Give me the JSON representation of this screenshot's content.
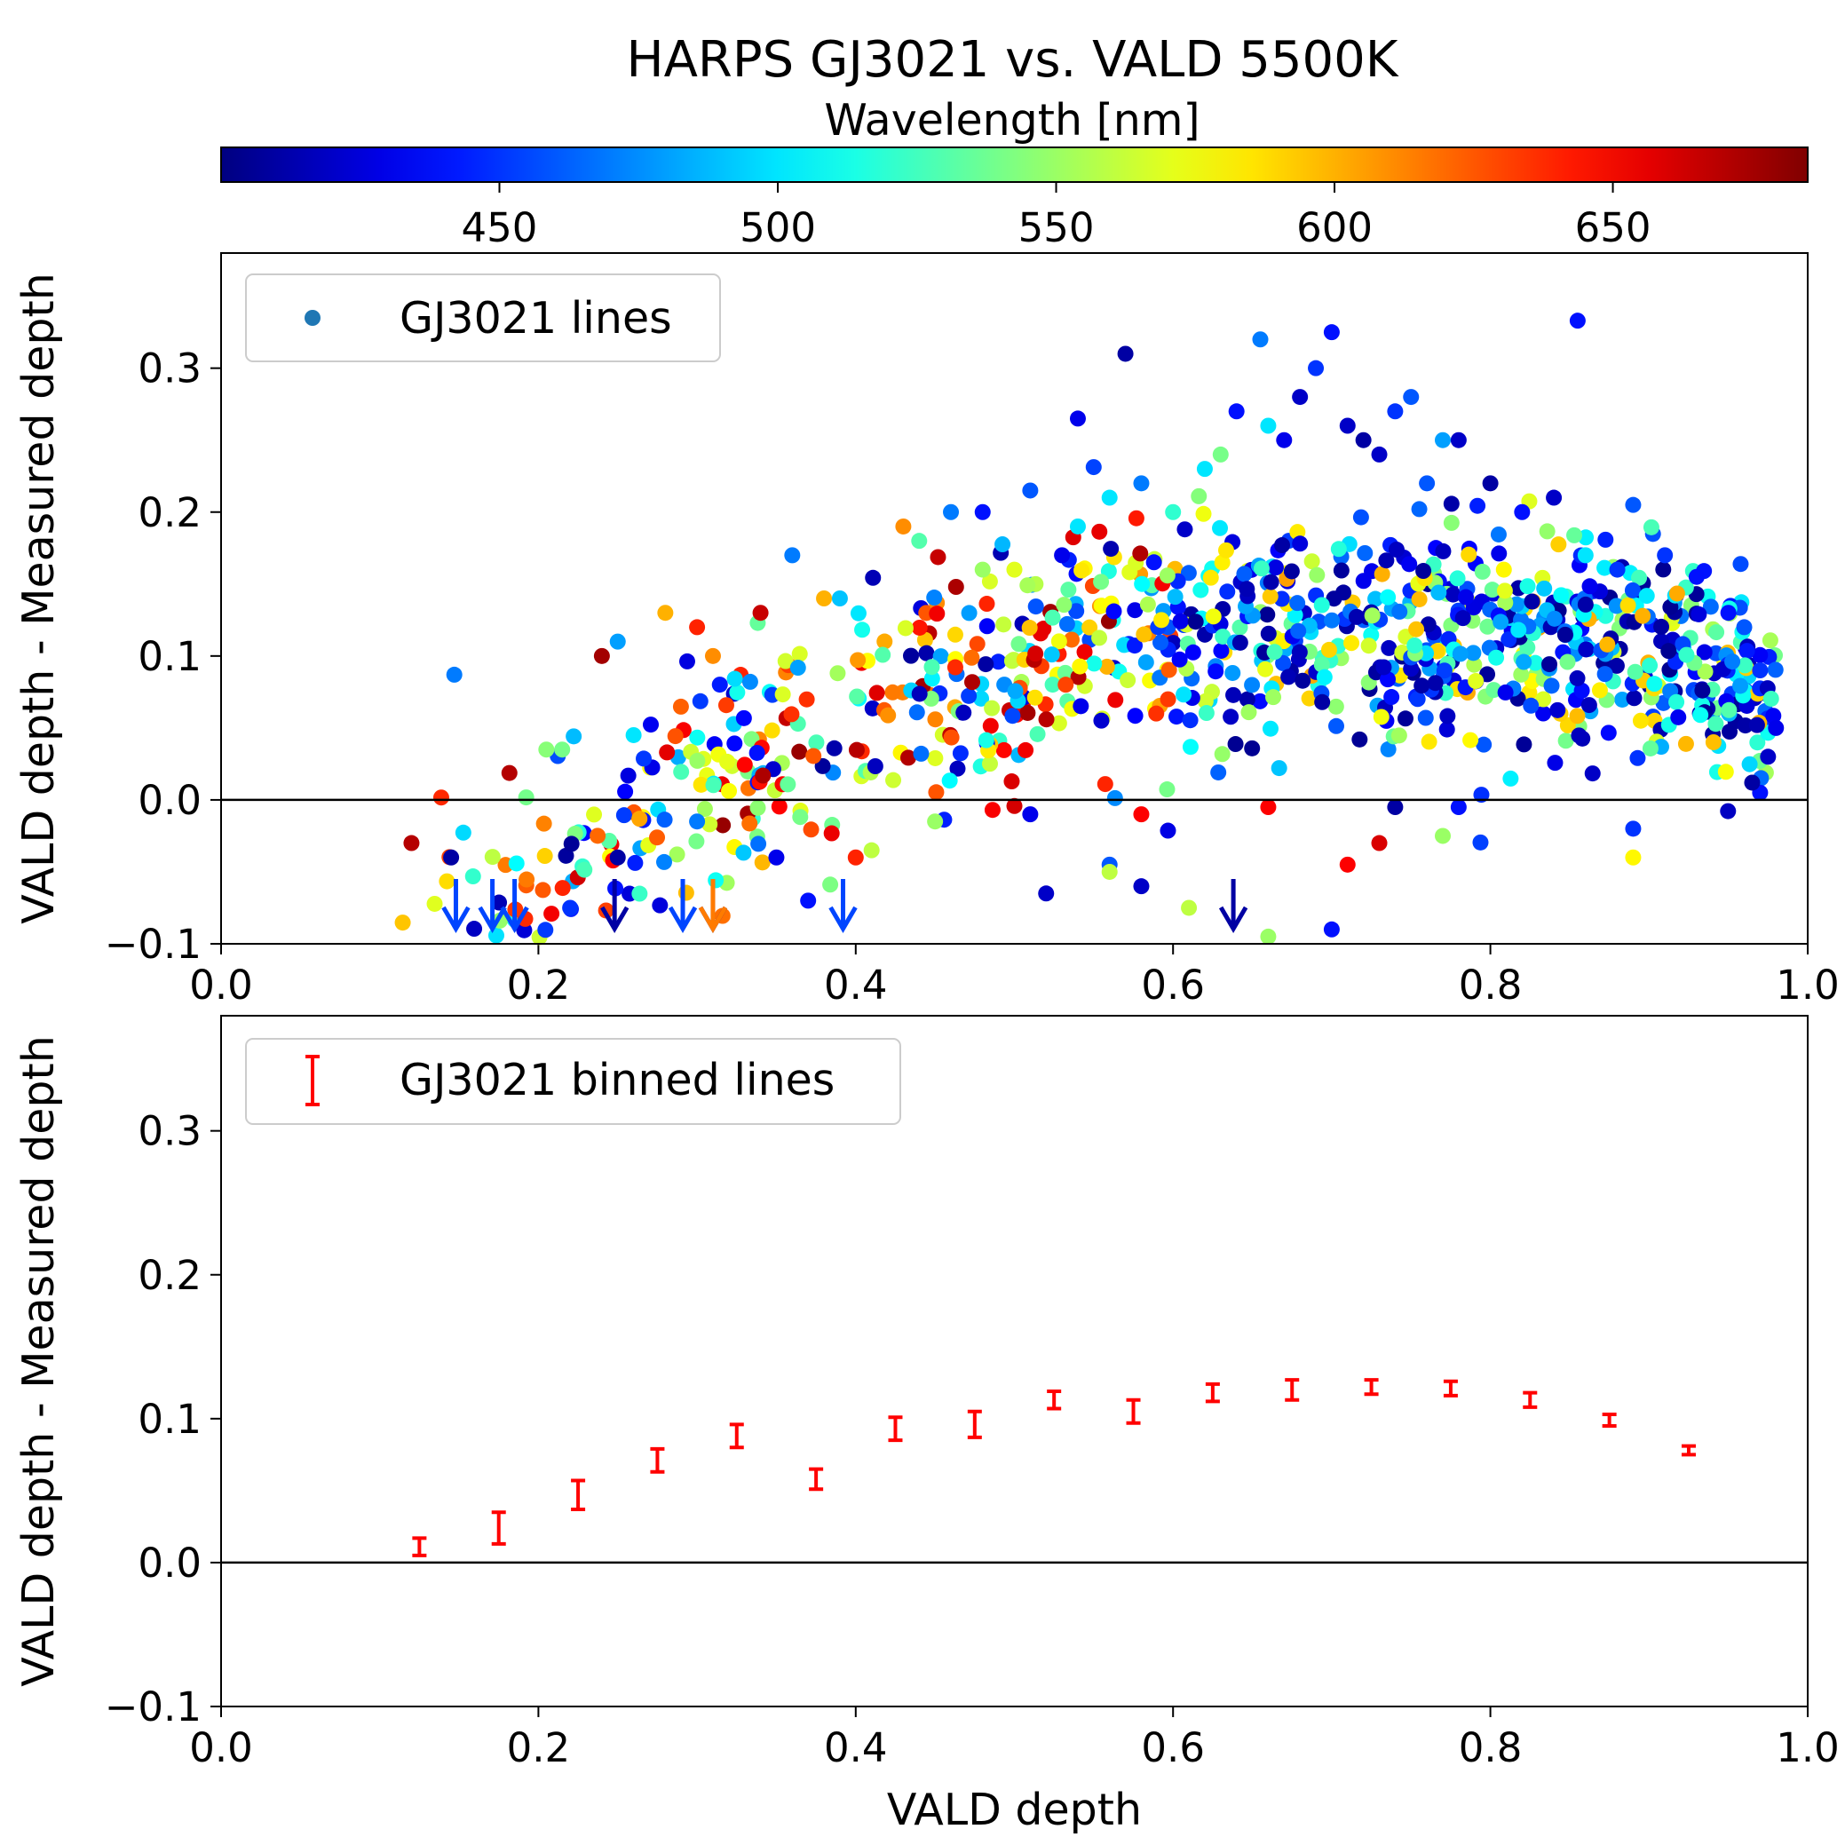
{
  "chart_data": [
    {
      "type": "scatter",
      "title": "HARPS GJ3021 vs. VALD 5500K",
      "ylabel": "VALD depth - Measured depth",
      "xlim": [
        0.0,
        1.0
      ],
      "ylim": [
        -0.1,
        0.38
      ],
      "x_ticks": [
        "0.0",
        "0.2",
        "0.4",
        "0.6",
        "0.8",
        "1.0"
      ],
      "y_ticks": [
        "0.3",
        "0.2",
        "0.1",
        "0.0",
        "−0.1"
      ],
      "x_tick_values": [
        0.0,
        0.2,
        0.4,
        0.6,
        0.8,
        1.0
      ],
      "y_tick_values": [
        0.3,
        0.2,
        0.1,
        0.0,
        -0.1
      ],
      "zero_line": true,
      "grid": false,
      "legend": {
        "position": "top-left",
        "label": "GJ3021 lines",
        "marker_color": "#1f77b4"
      },
      "colorbar": {
        "label": "Wavelength [nm]",
        "colormap": "jet",
        "position": "top",
        "range": [
          400,
          685
        ],
        "ticks": [
          "450",
          "500",
          "550",
          "600",
          "650"
        ],
        "tick_values": [
          450,
          500,
          550,
          600,
          650
        ]
      },
      "marker_seed": 3021,
      "marker_count": 1000,
      "points": [
        [
          0.147,
          0.087,
          470
        ],
        [
          0.205,
          0.035,
          545
        ],
        [
          0.215,
          0.035,
          540
        ],
        [
          0.24,
          0.1,
          675
        ],
        [
          0.25,
          0.11,
          480
        ],
        [
          0.26,
          0.045,
          500
        ],
        [
          0.28,
          0.13,
          600
        ],
        [
          0.3,
          0.12,
          640
        ],
        [
          0.31,
          0.1,
          610
        ],
        [
          0.34,
          0.13,
          665
        ],
        [
          0.36,
          0.17,
          470
        ],
        [
          0.38,
          0.14,
          600
        ],
        [
          0.39,
          0.14,
          490
        ],
        [
          0.43,
          0.19,
          610
        ],
        [
          0.44,
          0.18,
          530
        ],
        [
          0.46,
          0.2,
          470
        ],
        [
          0.48,
          0.2,
          440
        ],
        [
          0.48,
          0.16,
          550
        ],
        [
          0.5,
          0.16,
          570
        ],
        [
          0.51,
          0.215,
          460
        ],
        [
          0.53,
          0.17,
          430
        ],
        [
          0.54,
          0.265,
          430
        ],
        [
          0.54,
          0.19,
          500
        ],
        [
          0.56,
          0.21,
          500
        ],
        [
          0.57,
          0.31,
          410
        ],
        [
          0.58,
          0.22,
          470
        ],
        [
          0.6,
          0.2,
          520
        ],
        [
          0.62,
          0.23,
          500
        ],
        [
          0.63,
          0.24,
          540
        ],
        [
          0.64,
          0.27,
          440
        ],
        [
          0.655,
          0.32,
          470
        ],
        [
          0.66,
          0.26,
          500
        ],
        [
          0.67,
          0.25,
          430
        ],
        [
          0.68,
          0.28,
          420
        ],
        [
          0.69,
          0.3,
          450
        ],
        [
          0.7,
          0.325,
          440
        ],
        [
          0.71,
          0.26,
          420
        ],
        [
          0.72,
          0.25,
          410
        ],
        [
          0.73,
          0.24,
          420
        ],
        [
          0.74,
          0.27,
          450
        ],
        [
          0.75,
          0.28,
          460
        ],
        [
          0.76,
          0.22,
          460
        ],
        [
          0.77,
          0.25,
          480
        ],
        [
          0.78,
          0.25,
          420
        ],
        [
          0.8,
          0.22,
          410
        ],
        [
          0.82,
          0.2,
          440
        ],
        [
          0.84,
          0.21,
          420
        ],
        [
          0.855,
          0.333,
          440
        ],
        [
          0.86,
          0.17,
          500
        ],
        [
          0.88,
          0.16,
          450
        ],
        [
          0.89,
          0.205,
          460
        ],
        [
          0.91,
          0.17,
          450
        ],
        [
          0.93,
          0.155,
          440
        ],
        [
          0.95,
          0.13,
          440
        ],
        [
          0.96,
          0.12,
          460
        ],
        [
          0.97,
          0.09,
          450
        ],
        [
          0.98,
          0.05,
          430
        ],
        [
          0.975,
          0.03,
          420
        ],
        [
          0.97,
          0.005,
          440
        ],
        [
          0.965,
          0.012,
          410
        ],
        [
          0.12,
          -0.03,
          670
        ],
        [
          0.145,
          -0.04,
          410
        ],
        [
          0.25,
          -0.04,
          410
        ],
        [
          0.22,
          -0.075,
          450
        ],
        [
          0.3,
          -0.015,
          470
        ],
        [
          0.35,
          -0.04,
          430
        ],
        [
          0.37,
          -0.07,
          440
        ],
        [
          0.4,
          -0.04,
          640
        ],
        [
          0.41,
          -0.035,
          560
        ],
        [
          0.45,
          -0.015,
          550
        ],
        [
          0.51,
          -0.01,
          430
        ],
        [
          0.52,
          -0.065,
          420
        ],
        [
          0.56,
          -0.045,
          460
        ],
        [
          0.56,
          -0.05,
          560
        ],
        [
          0.58,
          -0.01,
          650
        ],
        [
          0.58,
          -0.06,
          420
        ],
        [
          0.61,
          -0.075,
          560
        ],
        [
          0.66,
          -0.005,
          650
        ],
        [
          0.66,
          -0.095,
          550
        ],
        [
          0.7,
          -0.09,
          440
        ],
        [
          0.71,
          -0.045,
          650
        ],
        [
          0.73,
          -0.03,
          660
        ],
        [
          0.74,
          -0.005,
          410
        ],
        [
          0.77,
          -0.025,
          550
        ],
        [
          0.78,
          -0.005,
          440
        ],
        [
          0.89,
          -0.02,
          450
        ],
        [
          0.89,
          -0.04,
          580
        ]
      ],
      "upper_limit_arrows": [
        {
          "x": 0.148,
          "wavelength": 455
        },
        {
          "x": 0.171,
          "wavelength": 455
        },
        {
          "x": 0.185,
          "wavelength": 455
        },
        {
          "x": 0.248,
          "wavelength": 410
        },
        {
          "x": 0.291,
          "wavelength": 455
        },
        {
          "x": 0.31,
          "wavelength": 410
        },
        {
          "x": 0.31,
          "wavelength": 615
        },
        {
          "x": 0.392,
          "wavelength": 455
        },
        {
          "x": 0.638,
          "wavelength": 410
        }
      ]
    },
    {
      "type": "errorbar",
      "ylabel": "VALD depth - Measured depth",
      "xlabel": "VALD depth",
      "xlim": [
        0.0,
        1.0
      ],
      "ylim": [
        -0.1,
        0.38
      ],
      "x_ticks": [
        "0.0",
        "0.2",
        "0.4",
        "0.6",
        "0.8",
        "1.0"
      ],
      "y_ticks": [
        "0.3",
        "0.2",
        "0.1",
        "0.0",
        "−0.1"
      ],
      "x_tick_values": [
        0.0,
        0.2,
        0.4,
        0.6,
        0.8,
        1.0
      ],
      "y_tick_values": [
        0.3,
        0.2,
        0.1,
        0.0,
        -0.1
      ],
      "zero_line": true,
      "grid": false,
      "color": "#ff0000",
      "legend": {
        "position": "top-left",
        "label": "GJ3021 binned lines"
      },
      "points": [
        {
          "x": 0.125,
          "y": 0.011,
          "err": 0.006
        },
        {
          "x": 0.175,
          "y": 0.024,
          "err": 0.011
        },
        {
          "x": 0.225,
          "y": 0.047,
          "err": 0.01
        },
        {
          "x": 0.275,
          "y": 0.071,
          "err": 0.008
        },
        {
          "x": 0.325,
          "y": 0.088,
          "err": 0.008
        },
        {
          "x": 0.375,
          "y": 0.058,
          "err": 0.007
        },
        {
          "x": 0.425,
          "y": 0.093,
          "err": 0.008
        },
        {
          "x": 0.475,
          "y": 0.096,
          "err": 0.009
        },
        {
          "x": 0.525,
          "y": 0.113,
          "err": 0.006
        },
        {
          "x": 0.575,
          "y": 0.105,
          "err": 0.008
        },
        {
          "x": 0.625,
          "y": 0.118,
          "err": 0.006
        },
        {
          "x": 0.675,
          "y": 0.12,
          "err": 0.007
        },
        {
          "x": 0.725,
          "y": 0.122,
          "err": 0.005
        },
        {
          "x": 0.775,
          "y": 0.121,
          "err": 0.005
        },
        {
          "x": 0.825,
          "y": 0.113,
          "err": 0.005
        },
        {
          "x": 0.875,
          "y": 0.099,
          "err": 0.004
        },
        {
          "x": 0.925,
          "y": 0.078,
          "err": 0.003
        }
      ]
    }
  ]
}
